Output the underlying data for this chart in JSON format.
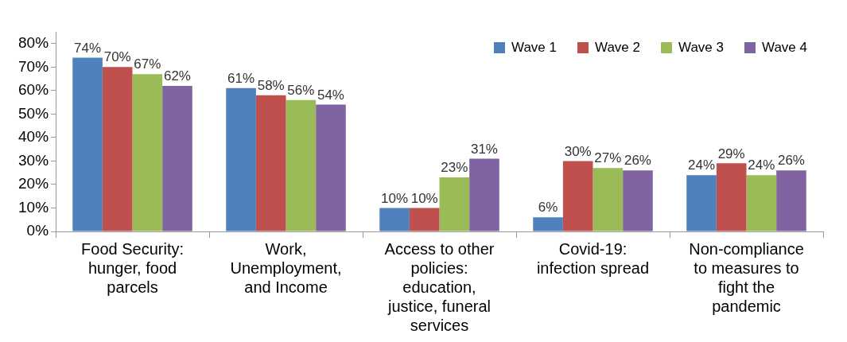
{
  "chart_data": {
    "type": "bar",
    "categories": [
      "Food Security: hunger, food parcels",
      "Work, Unemployment, and Income",
      "Access to other policies: education, justice, funeral services",
      "Covid-19: infection spread",
      "Non-compliance to measures to fight the pandemic"
    ],
    "series": [
      {
        "name": "Wave 1",
        "color": "#4f81bd",
        "values": [
          74,
          61,
          10,
          6,
          24
        ],
        "value_labels": [
          "74%",
          "61%",
          "10%",
          "6%",
          "24%"
        ]
      },
      {
        "name": "Wave 2",
        "color": "#c0504d",
        "values": [
          70,
          58,
          10,
          30,
          29
        ],
        "value_labels": [
          "70%",
          "58%",
          "10%",
          "30%",
          "29%"
        ]
      },
      {
        "name": "Wave 3",
        "color": "#9bbb59",
        "values": [
          67,
          56,
          23,
          27,
          24
        ],
        "value_labels": [
          "67%",
          "56%",
          "23%",
          "27%",
          "24%"
        ]
      },
      {
        "name": "Wave 4",
        "color": "#8064a2",
        "values": [
          62,
          54,
          31,
          26,
          26
        ],
        "value_labels": [
          "62%",
          "54%",
          "31%",
          "26%",
          "26%"
        ]
      }
    ],
    "ylim": [
      0,
      85
    ],
    "yticks": [
      {
        "value": 0,
        "label": "0%"
      },
      {
        "value": 10,
        "label": "10%"
      },
      {
        "value": 20,
        "label": "20%"
      },
      {
        "value": 30,
        "label": "30%"
      },
      {
        "value": 40,
        "label": "40%"
      },
      {
        "value": 50,
        "label": "50%"
      },
      {
        "value": 60,
        "label": "60%"
      },
      {
        "value": 70,
        "label": "70%"
      },
      {
        "value": 80,
        "label": "80%"
      }
    ],
    "legend": "top right"
  }
}
